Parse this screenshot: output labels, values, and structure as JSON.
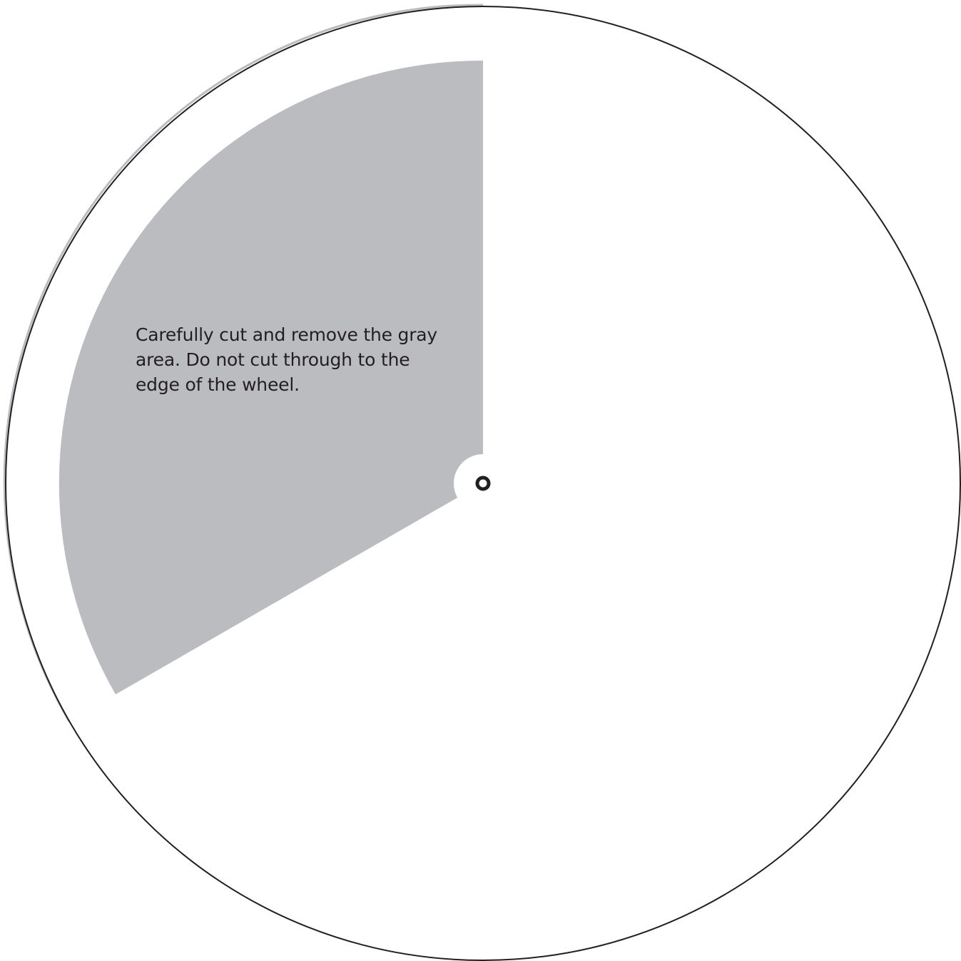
{
  "instruction_text": "Carefully cut and remove the gray area. Do not cut through to the edge of the wheel.",
  "colors": {
    "background": "#ffffff",
    "cutout_fill": "#bbbcc0",
    "outline": "#231f20",
    "center_ring": "#231f20"
  }
}
